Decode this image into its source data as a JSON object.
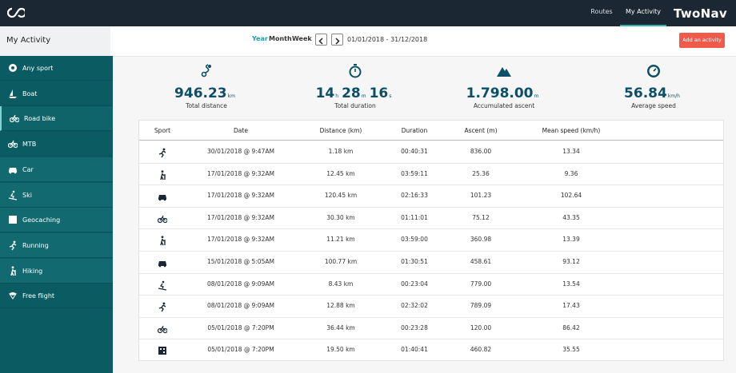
{
  "header": {
    "nav": [
      "Routes",
      "My Activity"
    ],
    "brand": "TwoNav"
  },
  "toolbar": {
    "title": "My Activity",
    "periods": [
      "Year",
      "Month",
      "Week"
    ],
    "range": "01/01/2018 - 31/12/2018",
    "add_button": "Add an activity"
  },
  "sidebar": [
    "Any sport",
    "Boat",
    "Road bike",
    "MTB",
    "Car",
    "Ski",
    "Geocaching",
    "Running",
    "Hiking",
    "Free flight"
  ],
  "stats": [
    {
      "parts": [
        {
          "value": "946.23",
          "unit": "km"
        }
      ],
      "label": "Total distance"
    },
    {
      "parts": [
        {
          "value": "14",
          "unit": "h"
        },
        {
          "value": "28",
          "unit": "m"
        },
        {
          "value": "16",
          "unit": "s"
        }
      ],
      "label": "Total duration"
    },
    {
      "parts": [
        {
          "value": "1.798.00",
          "unit": "m"
        }
      ],
      "label": "Accumulated ascent"
    },
    {
      "parts": [
        {
          "value": "56.84",
          "unit": "km/h"
        }
      ],
      "label": "Average speed"
    }
  ],
  "table": {
    "columns": [
      "Sport",
      "Date",
      "Distance (km)",
      "Duration",
      "Ascent (m)",
      "Mean speed (km/h)"
    ],
    "rows": [
      [
        "30/01/2018 @ 9:47AM",
        "1.18 km",
        "00:40:31",
        "836.00",
        "13.34"
      ],
      [
        "17/01/2018 @ 9:32AM",
        "12.45 km",
        "03:59:11",
        "25.36",
        "9.36"
      ],
      [
        "17/01/2018 @ 9:32AM",
        "120.45 km",
        "02:16:33",
        "101.23",
        "102.64"
      ],
      [
        "17/01/2018 @ 9:32AM",
        "30.30 km",
        "01:11:01",
        "75.12",
        "43.35"
      ],
      [
        "17/01/2018 @ 9:32AM",
        "11.21 km",
        "03:59:00",
        "360.98",
        "13.39"
      ],
      [
        "15/01/2018 @ 5:05AM",
        "100.77 km",
        "01:30:51",
        "458.61",
        "93.12"
      ],
      [
        "08/01/2018 @ 9:09AM",
        "8.43 km",
        "00:23:04",
        "779.00",
        "13.54"
      ],
      [
        "08/01/2018 @ 9:09AM",
        "12.88 km",
        "02:32:02",
        "789.09",
        "17.43"
      ],
      [
        "05/01/2018 @ 7:20PM",
        "36.44 km",
        "00:23:28",
        "120.00",
        "86.42"
      ],
      [
        "05/01/2018 @ 7:20PM",
        "19.50 km",
        "01:40:41",
        "460.82",
        "35.55"
      ]
    ]
  }
}
